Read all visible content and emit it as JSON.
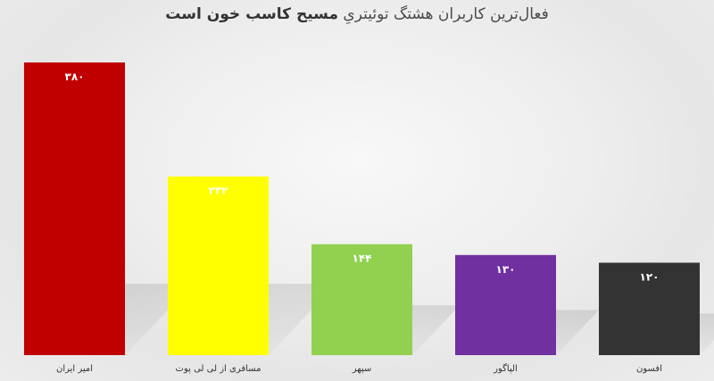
{
  "chart_data": {
    "type": "bar",
    "title_prefix": "فعال‌ترین کاربران هشتگ توئیتریِ",
    "title_bold": "مسیح کاسب خون است",
    "xlabel": "",
    "ylabel": "",
    "categories": [
      "امیر ایران",
      "مسافری از لی لی پوت",
      "سپهر",
      "الپاگور",
      "افسون"
    ],
    "values": [
      380,
      232,
      144,
      130,
      120
    ],
    "value_labels": [
      "۳۸۰",
      "۲۳۲",
      "۱۴۴",
      "۱۳۰",
      "۱۲۰"
    ],
    "colors": [
      "#c00000",
      "#ffff00",
      "#92d050",
      "#7030a0",
      "#333333"
    ],
    "ylim": [
      0,
      380
    ],
    "grid": false,
    "legend": "none"
  }
}
